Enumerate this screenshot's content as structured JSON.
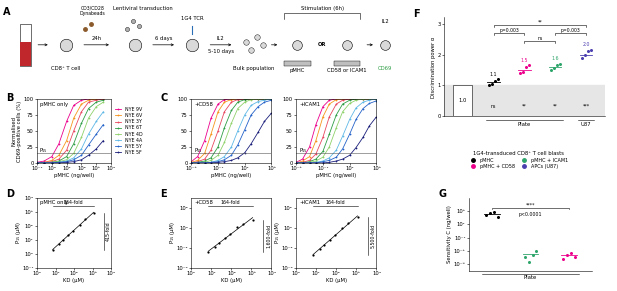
{
  "diagram": {
    "panel_label": "A",
    "cell_label": "CD8⁺ T cell",
    "beads_label": "CD3/CD28\nDynabeads",
    "step1_time": "24h",
    "transduction_label": "Lentiviral transduction",
    "step2_time": "6 days",
    "tcr_label": "1G4 TCR",
    "il2_label": "IL2",
    "step3_time": "5-10 days",
    "bulk_label": "Bulk population",
    "stimulation_label": "Stimulation (6h)",
    "pmhc_label": "pMHC",
    "or_label": "OR",
    "coreceptor_label": "CD58 or ICAM1",
    "readout_il2": "IL2",
    "readout_cd69": "CD69"
  },
  "chart_data": [
    {
      "type": "line",
      "panel_label": "B",
      "title": "pMHC only",
      "xlabel": "pMHC (ng/well)",
      "ylabel": "Normalised\nCD69-positive cells (%)",
      "log": "x",
      "marker": "o",
      "legend": "center left",
      "xlim": [
        0.1,
        10000
      ],
      "ylim": [
        0,
        100
      ],
      "xticks": [
        {
          "value": 0.1,
          "label": "10⁻¹"
        },
        {
          "value": 1,
          "label": "10⁰"
        },
        {
          "value": 10,
          "label": "10¹"
        },
        {
          "value": 100,
          "label": "10²"
        },
        {
          "value": 1000,
          "label": "10³"
        },
        {
          "value": 10000,
          "label": "10⁴"
        }
      ],
      "yticks": [
        0,
        25,
        50,
        75,
        100
      ],
      "reference_line": {
        "value": 15,
        "label": "P₁₅"
      },
      "x": [
        0.1,
        0.3,
        1,
        3,
        10,
        30,
        100,
        300,
        1000,
        3000
      ],
      "series": [
        {
          "name": "NYE 9V",
          "color": "#ec008c",
          "values": [
            1,
            3,
            10,
            30,
            65,
            90,
            98,
            100,
            100,
            100
          ]
        },
        {
          "name": "NYE 6V",
          "color": "#f7941d",
          "values": [
            0,
            1,
            4,
            12,
            35,
            70,
            92,
            98,
            100,
            100
          ]
        },
        {
          "name": "NYE 3Y",
          "color": "#e8475f",
          "values": [
            0,
            1,
            2,
            6,
            20,
            50,
            80,
            95,
            98,
            100
          ]
        },
        {
          "name": "NYE 6T",
          "color": "#2e9e44",
          "values": [
            0,
            0,
            1,
            3,
            10,
            30,
            62,
            85,
            95,
            98
          ]
        },
        {
          "name": "NYE 4D",
          "color": "#8fd16a",
          "values": [
            0,
            0,
            1,
            2,
            5,
            15,
            40,
            70,
            88,
            95
          ]
        },
        {
          "name": "NYE 4A",
          "color": "#5fb8e6",
          "values": [
            0,
            0,
            0,
            1,
            3,
            8,
            22,
            45,
            65,
            80
          ]
        },
        {
          "name": "NYE 5Y",
          "color": "#2563c9",
          "values": [
            0,
            0,
            0,
            1,
            2,
            5,
            12,
            28,
            45,
            60
          ]
        },
        {
          "name": "NYE 5F",
          "color": "#1b1f7a",
          "values": [
            0,
            0,
            0,
            0,
            1,
            2,
            5,
            12,
            22,
            35
          ]
        }
      ]
    },
    {
      "type": "line",
      "panel_label": "C",
      "title": "+CD58",
      "xlabel": "pMHC (ng/well)",
      "log": "x",
      "marker": "o",
      "xlim": [
        0.001,
        1000
      ],
      "ylim": [
        0,
        100
      ],
      "xticks": [
        {
          "value": 0.001,
          "label": "10⁻³"
        },
        {
          "value": 0.1,
          "label": "10⁻¹"
        },
        {
          "value": 10,
          "label": "10¹"
        },
        {
          "value": 1000,
          "label": "10³"
        }
      ],
      "yticks": [
        0,
        25,
        50,
        75,
        100
      ],
      "reference_line": {
        "value": 15,
        "label": "P₁₅"
      },
      "x": [
        0.001,
        0.003,
        0.01,
        0.03,
        0.1,
        0.3,
        1,
        3,
        10,
        30,
        100,
        300,
        1000
      ],
      "series": [
        {
          "name": "NYE 9V",
          "color": "#ec008c",
          "values": [
            2,
            10,
            35,
            70,
            92,
            99,
            100,
            100,
            100,
            100,
            100,
            100,
            100
          ]
        },
        {
          "name": "NYE 6V",
          "color": "#f7941d",
          "values": [
            1,
            4,
            15,
            45,
            80,
            95,
            99,
            100,
            100,
            100,
            100,
            100,
            100
          ]
        },
        {
          "name": "NYE 3Y",
          "color": "#e8475f",
          "values": [
            0,
            2,
            6,
            20,
            50,
            80,
            95,
            99,
            100,
            100,
            100,
            100,
            100
          ]
        },
        {
          "name": "NYE 6T",
          "color": "#2e9e44",
          "values": [
            0,
            1,
            3,
            8,
            25,
            55,
            82,
            95,
            99,
            100,
            100,
            100,
            100
          ]
        },
        {
          "name": "NYE 4D",
          "color": "#8fd16a",
          "values": [
            0,
            0,
            1,
            4,
            12,
            32,
            62,
            85,
            95,
            99,
            100,
            100,
            100
          ]
        },
        {
          "name": "NYE 4A",
          "color": "#5fb8e6",
          "values": [
            0,
            0,
            0,
            1,
            4,
            10,
            25,
            50,
            75,
            90,
            96,
            98,
            100
          ]
        },
        {
          "name": "NYE 5Y",
          "color": "#2563c9",
          "values": [
            0,
            0,
            0,
            1,
            2,
            5,
            12,
            28,
            52,
            75,
            88,
            95,
            98
          ]
        },
        {
          "name": "NYE 5F",
          "color": "#1b1f7a",
          "values": [
            0,
            0,
            0,
            0,
            1,
            2,
            4,
            8,
            16,
            30,
            48,
            65,
            78
          ]
        }
      ]
    },
    {
      "type": "line",
      "title": "+ICAM1",
      "xlabel": "pMHC (ng/well)",
      "log": "x",
      "marker": "o",
      "xlim": [
        0.001,
        1000
      ],
      "ylim": [
        0,
        100
      ],
      "xticks": [
        {
          "value": 0.001,
          "label": "10⁻³"
        },
        {
          "value": 0.1,
          "label": "10⁻¹"
        },
        {
          "value": 10,
          "label": "10¹"
        },
        {
          "value": 1000,
          "label": "10³"
        }
      ],
      "yticks": [
        0,
        25,
        50,
        75,
        100
      ],
      "reference_line": {
        "value": 15,
        "label": "P₁₅"
      },
      "x": [
        0.001,
        0.003,
        0.01,
        0.03,
        0.1,
        0.3,
        1,
        3,
        10,
        30,
        100,
        300,
        1000
      ],
      "series": [
        {
          "name": "NYE 9V",
          "color": "#ec008c",
          "values": [
            1,
            6,
            25,
            60,
            88,
            98,
            100,
            100,
            100,
            100,
            100,
            100,
            100
          ]
        },
        {
          "name": "NYE 6V",
          "color": "#f7941d",
          "values": [
            0,
            3,
            10,
            35,
            72,
            92,
            99,
            100,
            100,
            100,
            100,
            100,
            100
          ]
        },
        {
          "name": "NYE 3Y",
          "color": "#e8475f",
          "values": [
            0,
            1,
            4,
            14,
            40,
            72,
            92,
            98,
            100,
            100,
            100,
            100,
            100
          ]
        },
        {
          "name": "NYE 6T",
          "color": "#2e9e44",
          "values": [
            0,
            0,
            2,
            6,
            18,
            45,
            75,
            92,
            98,
            100,
            100,
            100,
            100
          ]
        },
        {
          "name": "NYE 4D",
          "color": "#8fd16a",
          "values": [
            0,
            0,
            1,
            3,
            9,
            25,
            55,
            80,
            93,
            98,
            100,
            100,
            100
          ]
        },
        {
          "name": "NYE 4A",
          "color": "#5fb8e6",
          "values": [
            0,
            0,
            0,
            1,
            3,
            8,
            20,
            42,
            68,
            86,
            95,
            98,
            100
          ]
        },
        {
          "name": "NYE 5Y",
          "color": "#2563c9",
          "values": [
            0,
            0,
            0,
            0,
            2,
            4,
            9,
            22,
            45,
            68,
            85,
            93,
            97
          ]
        },
        {
          "name": "NYE 5F",
          "color": "#1b1f7a",
          "values": [
            0,
            0,
            0,
            0,
            0,
            1,
            3,
            6,
            12,
            24,
            40,
            58,
            72
          ]
        }
      ]
    },
    {
      "type": "scatter",
      "panel_label": "D",
      "title": "pMHC only",
      "xlabel": "KD (µM)",
      "ylabel": "P₁₅ (µM)",
      "log": true,
      "color": "#000000",
      "x_fold_label": "164-fold",
      "y_fold_label": "415-fold",
      "xlim": [
        1,
        10000
      ],
      "ylim": [
        0.1,
        10000
      ],
      "xticks": [
        {
          "value": 1,
          "label": "10⁰"
        },
        {
          "value": 10,
          "label": "10¹"
        },
        {
          "value": 100,
          "label": "10²"
        },
        {
          "value": 1000,
          "label": "10³"
        },
        {
          "value": 10000,
          "label": "10⁴"
        }
      ],
      "yticks": [
        {
          "value": 0.1,
          "label": "10⁻¹"
        },
        {
          "value": 1,
          "label": "10⁰"
        },
        {
          "value": 10,
          "label": "10¹"
        },
        {
          "value": 100,
          "label": "10²"
        },
        {
          "value": 1000,
          "label": "10³"
        },
        {
          "value": 10000,
          "label": "10⁴"
        }
      ],
      "x": [
        7,
        15,
        25,
        50,
        90,
        200,
        400,
        1150
      ],
      "values": [
        2,
        5,
        9,
        22,
        40,
        120,
        300,
        830
      ]
    },
    {
      "type": "scatter",
      "panel_label": "E",
      "title": "+CD58",
      "xlabel": "KD (µM)",
      "ylabel": "P₁₅ (µM)",
      "log": true,
      "color": "#000000",
      "x_fold_label": "164-fold",
      "y_fold_label": "1,600-fold",
      "xlim": [
        1,
        10000
      ],
      "ylim": [
        0.0001,
        1000
      ],
      "xticks": [
        {
          "value": 1,
          "label": "10⁰"
        },
        {
          "value": 10,
          "label": "10¹"
        },
        {
          "value": 100,
          "label": "10²"
        },
        {
          "value": 1000,
          "label": "10³"
        },
        {
          "value": 10000,
          "label": "10⁴"
        }
      ],
      "yticks": [
        {
          "value": 0.0001,
          "label": "10⁻⁴"
        },
        {
          "value": 0.01,
          "label": "10⁻²"
        },
        {
          "value": 1,
          "label": "10⁰"
        },
        {
          "value": 100,
          "label": "10²"
        }
      ],
      "x": [
        7,
        15,
        25,
        50,
        90,
        200,
        400,
        1150
      ],
      "values": [
        0.004,
        0.012,
        0.03,
        0.09,
        0.25,
        1.2,
        2.5,
        6.4
      ]
    },
    {
      "type": "scatter",
      "title": "+ICAM1",
      "xlabel": "KD (µM)",
      "ylabel": "P₁₅ (µM)",
      "log": true,
      "color": "#000000",
      "x_fold_label": "164-fold",
      "y_fold_label": "5,500-fold",
      "xlim": [
        1,
        10000
      ],
      "ylim": [
        0.0001,
        1000
      ],
      "xticks": [
        {
          "value": 1,
          "label": "10⁰"
        },
        {
          "value": 10,
          "label": "10¹"
        },
        {
          "value": 100,
          "label": "10²"
        },
        {
          "value": 1000,
          "label": "10³"
        },
        {
          "value": 10000,
          "label": "10⁴"
        }
      ],
      "yticks": [
        {
          "value": 0.0001,
          "label": "10⁻⁴"
        },
        {
          "value": 0.01,
          "label": "10⁻²"
        },
        {
          "value": 1,
          "label": "10⁰"
        },
        {
          "value": 100,
          "label": "10²"
        }
      ],
      "x": [
        7,
        15,
        25,
        50,
        90,
        200,
        400,
        1150
      ],
      "values": [
        0.002,
        0.007,
        0.02,
        0.06,
        0.2,
        1.0,
        3,
        11
      ]
    },
    {
      "type": "dot",
      "panel_label": "F",
      "ylabel": "Discrimination power α",
      "tick_labels": "y",
      "legend": "center",
      "legend_title": "1G4-transduced CD8⁺ T cell blasts",
      "ylim": [
        0,
        3.2
      ],
      "yticks": [
        0,
        1,
        2,
        3
      ],
      "reference": {
        "value": 1.0,
        "label": "1.0"
      },
      "groups": [
        {
          "name": "pMHC",
          "color": "#000000",
          "values": [
            1.0,
            1.05,
            1.15,
            1.2
          ],
          "mean": 1.1,
          "stat": "ns"
        },
        {
          "name": "pMHC + CD58",
          "color": "#ec008c",
          "values": [
            1.4,
            1.45,
            1.6,
            1.65
          ],
          "mean": 1.5,
          "stat": "**"
        },
        {
          "name": "pMHC + ICAM1",
          "color": "#2ea56b",
          "values": [
            1.5,
            1.55,
            1.65,
            1.7
          ],
          "mean": 1.6,
          "stat": "**"
        },
        {
          "name": "APCs (U87)",
          "color": "#4b3fb0",
          "values": [
            1.9,
            2.0,
            2.1,
            2.15
          ],
          "mean": 2.0,
          "stat": "***"
        }
      ],
      "group_labels": [
        {
          "label": "Plate",
          "from": 1,
          "to": 3
        },
        {
          "label": "U87",
          "from": 4,
          "to": 4
        }
      ],
      "brackets": [
        {
          "from": 2,
          "to": 3,
          "label": "ns"
        },
        {
          "from": 1,
          "to": 2,
          "label": "p=0.003"
        },
        {
          "from": 3,
          "to": 4,
          "label": "p=0.003"
        },
        {
          "from": 1,
          "to": 4,
          "label": "**"
        }
      ]
    },
    {
      "type": "dot",
      "panel_label": "G",
      "ylabel": "Sensitivity C (ng/well)",
      "log": "y",
      "tick_labels": "y",
      "ylim": [
        1e-06,
        100000
      ],
      "yticks": [
        {
          "value": 1e-05,
          "label": "10⁻⁵"
        },
        {
          "value": 0.001,
          "label": "10⁻³"
        },
        {
          "value": 0.1,
          "label": "10⁻¹"
        },
        {
          "value": 10,
          "label": "10¹"
        },
        {
          "value": 1000,
          "label": "10³"
        }
      ],
      "groups": [
        {
          "name": "pMHC",
          "color": "#000000",
          "values": [
            300,
            500,
            700,
            150
          ],
          "mean": 400
        },
        {
          "name": "pMHC + CD58",
          "color": "#2ea56b",
          "values": [
            0.0001,
            2e-05,
            0.0002,
            0.001
          ],
          "mean": 0.0003
        },
        {
          "name": "pMHC + ICAM1",
          "color": "#ec008c",
          "values": [
            5e-05,
            0.0002,
            0.0005,
            0.0001
          ],
          "mean": 0.0002
        }
      ],
      "group_labels": [
        {
          "label": "Plate",
          "from": 0,
          "to": 2
        }
      ],
      "brackets": [
        {
          "from": 0,
          "to": 2,
          "label": "****"
        }
      ],
      "note": "p<0.0001"
    }
  ]
}
